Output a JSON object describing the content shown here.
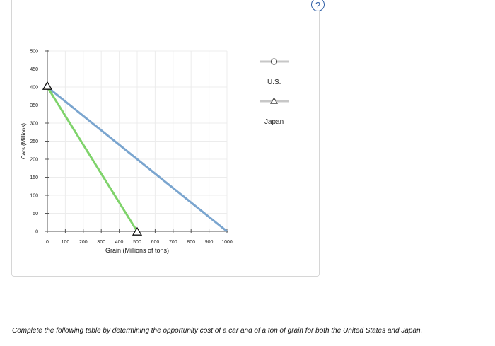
{
  "help": {
    "icon": "question-mark-icon",
    "label": "?"
  },
  "chart_data": {
    "type": "line",
    "xlabel": "Grain (Millions of tons)",
    "ylabel": "Cars (Millions)",
    "xlim": [
      0,
      1000
    ],
    "ylim": [
      0,
      500
    ],
    "x_ticks": [
      "0",
      "100",
      "200",
      "300",
      "400",
      "500",
      "600",
      "700",
      "800",
      "900",
      "1000"
    ],
    "y_ticks": [
      "0",
      "50",
      "100",
      "150",
      "200",
      "250",
      "300",
      "350",
      "400",
      "450",
      "500"
    ],
    "grid": true,
    "legend_position": "right",
    "series": [
      {
        "name": "U.S.",
        "marker": "circle",
        "color": "#7aa5cf",
        "points": [
          [
            0,
            400
          ],
          [
            1000,
            0
          ]
        ]
      },
      {
        "name": "Japan",
        "marker": "triangle",
        "color": "#7fd36b",
        "points": [
          [
            0,
            400
          ],
          [
            500,
            0
          ]
        ]
      }
    ]
  },
  "instructions": "Complete the following table by determining the opportunity cost of a car and of a ton of grain for both the United States and Japan."
}
